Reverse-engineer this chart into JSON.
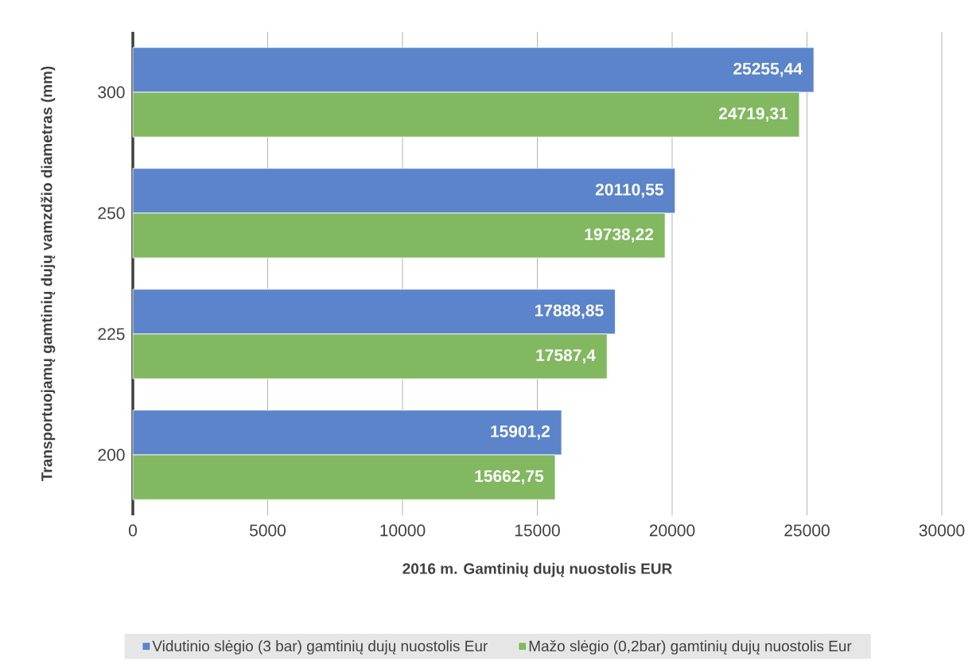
{
  "chart_data": {
    "type": "bar",
    "orientation": "horizontal",
    "xlabel": "2016 m. Gamtinių dujų nuostolis EUR",
    "ylabel": "Transportuojamų gamtinių dujų vamzdžio diametras (mm)",
    "categories": [
      "300",
      "250",
      "225",
      "200"
    ],
    "series": [
      {
        "name": "Vidutinio slėgio (3 bar) gamtinių dujų nuostolis Eur",
        "color": "#5b84ca",
        "values": [
          25255.44,
          20110.55,
          17888.85,
          15901.2
        ],
        "value_labels": [
          "25255,44",
          "20110,55",
          "17888,85",
          "15901,2"
        ]
      },
      {
        "name": "Mažo slėgio (0,2bar) gamtinių dujų nuostolis Eur",
        "color": "#82b860",
        "values": [
          24719.31,
          19738.22,
          17587.4,
          15662.75
        ],
        "value_labels": [
          "24719,31",
          "19738,22",
          "17587,4",
          "15662,75"
        ]
      }
    ],
    "xlim": [
      0,
      30000
    ],
    "xticks": [
      0,
      5000,
      10000,
      15000,
      20000,
      25000,
      30000
    ],
    "grid": "x",
    "legend": "bottom"
  }
}
